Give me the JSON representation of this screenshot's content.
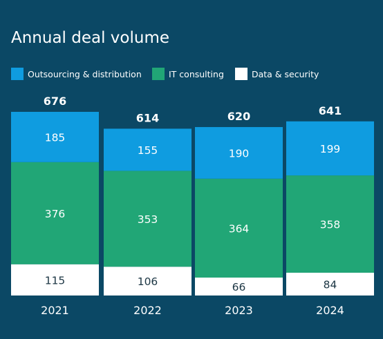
{
  "chart_data": {
    "type": "bar",
    "stacked": true,
    "title": "Annual deal volume",
    "categories": [
      "2021",
      "2022",
      "2023",
      "2024"
    ],
    "totals": [
      676,
      614,
      620,
      641
    ],
    "series": [
      {
        "name": "Outsourcing & distribution",
        "color": "#0f9ce0",
        "values": [
          185,
          155,
          190,
          199
        ]
      },
      {
        "name": "IT consulting",
        "color": "#21a676",
        "values": [
          376,
          353,
          364,
          358
        ]
      },
      {
        "name": "Data & security",
        "color": "#ffffff",
        "values": [
          115,
          106,
          66,
          84
        ]
      }
    ],
    "ylim": [
      0,
      676
    ],
    "grid": false,
    "legend_position": "top-left",
    "colors": {
      "background": "#0b4865",
      "text": "#ffffff",
      "segment_label_dark": "#1b3543"
    }
  }
}
